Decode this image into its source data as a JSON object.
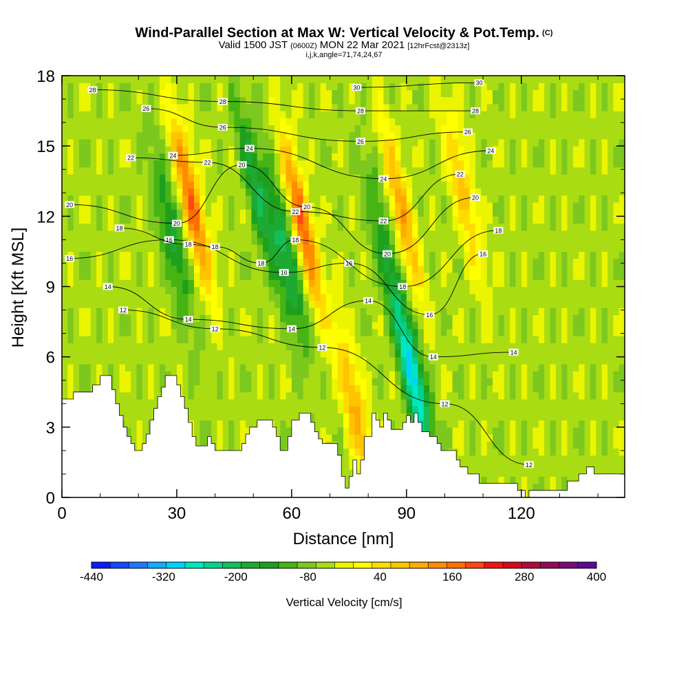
{
  "header": {
    "title": "Wind-Parallel Section at Max W: Vertical Velocity & Pot.Temp.",
    "copyright": "(C)",
    "valid_prefix": "Valid 1500 JST",
    "valid_utc": "(0600Z)",
    "valid_date": "MON 22 Mar 2021",
    "forecast": "[12hrFcst@2313z]",
    "indices": "i,j,k,angle=71,74,24,67"
  },
  "chart_data": {
    "type": "heatmap",
    "xlabel": "Distance [nm]",
    "ylabel": "Height [Kft MSL]",
    "xlim": [
      0,
      147
    ],
    "ylim": [
      0,
      18
    ],
    "x_ticks": [
      0,
      30,
      60,
      90,
      120
    ],
    "y_ticks": [
      0,
      3,
      6,
      9,
      12,
      15,
      18
    ],
    "colorbar": {
      "label": "Vertical Velocity [cm/s]",
      "min": -440,
      "max": 400,
      "step": 40,
      "tick_labels": [
        "-440",
        "-320",
        "-200",
        "-80",
        "40",
        "160",
        "280",
        "400"
      ],
      "colors": [
        "#0a1eff",
        "#1448ff",
        "#1e78ff",
        "#14aaff",
        "#00d2ff",
        "#00e6be",
        "#00d28c",
        "#14be5a",
        "#1eaa32",
        "#1ea01e",
        "#46b414",
        "#7dc81e",
        "#aadc14",
        "#ebf500",
        "#ffff00",
        "#ffdc00",
        "#ffc300",
        "#ffaa00",
        "#ff8c00",
        "#ff6e00",
        "#ff4614",
        "#f01414",
        "#d20a1e",
        "#b40a3c",
        "#960a5a",
        "#780a78",
        "#5a0a96"
      ]
    },
    "updrafts": [
      {
        "x": 33,
        "z_peak": 12.5,
        "w_max": 280
      },
      {
        "x": 62,
        "z_peak": 11.5,
        "w_max": 280
      },
      {
        "x": 88,
        "z_peak": 12.0,
        "w_max": 200
      },
      {
        "x": 104,
        "z_peak": 13.0,
        "w_max": 160
      },
      {
        "x": 76,
        "z_peak": 3.5,
        "w_max": 200
      }
    ],
    "downdrafts": [
      {
        "x": 91,
        "z_peak": 5.0,
        "w_min": -320
      },
      {
        "x": 28,
        "z_peak": 11.0,
        "w_min": -160
      },
      {
        "x": 58,
        "z_peak": 10.0,
        "w_min": -200
      },
      {
        "x": 50,
        "z_peak": 13.0,
        "w_min": -160
      },
      {
        "x": 83,
        "z_peak": 11.0,
        "w_min": -120
      }
    ],
    "terrain": [
      [
        0,
        4.2
      ],
      [
        3,
        4.2
      ],
      [
        3,
        4.5
      ],
      [
        8,
        4.5
      ],
      [
        8,
        4.8
      ],
      [
        10,
        4.8
      ],
      [
        10,
        5.2
      ],
      [
        13,
        5.2
      ],
      [
        13,
        4.6
      ],
      [
        14,
        4.6
      ],
      [
        14,
        4.0
      ],
      [
        15,
        4.0
      ],
      [
        15,
        3.5
      ],
      [
        16,
        3.5
      ],
      [
        16,
        3.0
      ],
      [
        17,
        3.0
      ],
      [
        17,
        2.6
      ],
      [
        18,
        2.6
      ],
      [
        18,
        2.3
      ],
      [
        19,
        2.3
      ],
      [
        19,
        2.0
      ],
      [
        21,
        2.0
      ],
      [
        21,
        2.3
      ],
      [
        22,
        2.3
      ],
      [
        22,
        2.7
      ],
      [
        23,
        2.7
      ],
      [
        23,
        3.3
      ],
      [
        24,
        3.3
      ],
      [
        24,
        3.8
      ],
      [
        25,
        3.8
      ],
      [
        25,
        4.3
      ],
      [
        26,
        4.3
      ],
      [
        26,
        4.7
      ],
      [
        27,
        4.7
      ],
      [
        27,
        5.2
      ],
      [
        30,
        5.2
      ],
      [
        30,
        4.8
      ],
      [
        31,
        4.8
      ],
      [
        31,
        4.3
      ],
      [
        32,
        4.3
      ],
      [
        32,
        3.8
      ],
      [
        33,
        3.8
      ],
      [
        33,
        3.2
      ],
      [
        34,
        3.2
      ],
      [
        34,
        2.6
      ],
      [
        35,
        2.6
      ],
      [
        35,
        2.2
      ],
      [
        38,
        2.2
      ],
      [
        38,
        2.6
      ],
      [
        39,
        2.6
      ],
      [
        39,
        2.3
      ],
      [
        40,
        2.3
      ],
      [
        40,
        2.0
      ],
      [
        47,
        2.0
      ],
      [
        47,
        2.3
      ],
      [
        48,
        2.3
      ],
      [
        48,
        2.7
      ],
      [
        49,
        2.7
      ],
      [
        49,
        3.0
      ],
      [
        51,
        3.0
      ],
      [
        51,
        3.3
      ],
      [
        55,
        3.3
      ],
      [
        55,
        3.0
      ],
      [
        56,
        3.0
      ],
      [
        56,
        2.6
      ],
      [
        57,
        2.6
      ],
      [
        57,
        2.0
      ],
      [
        59,
        2.0
      ],
      [
        59,
        2.6
      ],
      [
        60,
        2.6
      ],
      [
        60,
        3.3
      ],
      [
        62,
        3.3
      ],
      [
        62,
        3.6
      ],
      [
        65,
        3.6
      ],
      [
        65,
        3.2
      ],
      [
        66,
        3.2
      ],
      [
        66,
        2.8
      ],
      [
        67,
        2.8
      ],
      [
        67,
        2.5
      ],
      [
        68,
        2.5
      ],
      [
        68,
        2.3
      ],
      [
        72,
        2.3
      ],
      [
        72,
        1.8
      ],
      [
        73,
        1.8
      ],
      [
        73,
        0.9
      ],
      [
        74,
        0.9
      ],
      [
        74,
        0.4
      ],
      [
        75,
        0.4
      ],
      [
        75,
        0.9
      ],
      [
        76,
        0.9
      ],
      [
        76,
        1.6
      ],
      [
        77,
        1.6
      ],
      [
        77,
        1.0
      ],
      [
        78,
        1.0
      ],
      [
        78,
        1.6
      ],
      [
        79,
        1.6
      ],
      [
        79,
        2.6
      ],
      [
        81,
        2.6
      ],
      [
        81,
        3.6
      ],
      [
        82,
        3.6
      ],
      [
        82,
        3.3
      ],
      [
        83,
        3.3
      ],
      [
        83,
        3.0
      ],
      [
        84,
        3.0
      ],
      [
        84,
        3.6
      ],
      [
        85,
        3.6
      ],
      [
        85,
        3.3
      ],
      [
        86,
        3.3
      ],
      [
        86,
        2.9
      ],
      [
        89,
        2.9
      ],
      [
        89,
        3.2
      ],
      [
        90,
        3.2
      ],
      [
        90,
        3.5
      ],
      [
        91,
        3.5
      ],
      [
        91,
        3.2
      ],
      [
        92,
        3.2
      ],
      [
        92,
        3.6
      ],
      [
        93,
        3.6
      ],
      [
        93,
        3.2
      ],
      [
        94,
        3.2
      ],
      [
        94,
        2.8
      ],
      [
        96,
        2.8
      ],
      [
        96,
        2.6
      ],
      [
        98,
        2.6
      ],
      [
        98,
        2.3
      ],
      [
        99,
        2.3
      ],
      [
        99,
        2.0
      ],
      [
        103,
        2.0
      ],
      [
        103,
        1.6
      ],
      [
        104,
        1.6
      ],
      [
        104,
        1.3
      ],
      [
        106,
        1.3
      ],
      [
        106,
        1.0
      ],
      [
        109,
        1.0
      ],
      [
        109,
        0.6
      ],
      [
        119,
        0.6
      ],
      [
        119,
        0.3
      ],
      [
        121,
        0.3
      ],
      [
        121,
        0.0
      ],
      [
        122,
        0.0
      ],
      [
        122,
        0.3
      ],
      [
        132,
        0.3
      ],
      [
        132,
        0.7
      ],
      [
        135,
        0.7
      ],
      [
        135,
        1.0
      ],
      [
        137,
        1.0
      ],
      [
        137,
        1.3
      ],
      [
        139,
        1.3
      ],
      [
        139,
        1.0
      ],
      [
        147,
        1.0
      ]
    ],
    "theta_contours": [
      {
        "label": "12",
        "levels": 1,
        "samples": [
          [
            16,
            8
          ],
          [
            40,
            7.2
          ],
          [
            68,
            6.4
          ],
          [
            100,
            4
          ],
          [
            122,
            1.4
          ]
        ]
      },
      {
        "label": "14",
        "levels": 1,
        "samples": [
          [
            12,
            9
          ],
          [
            33,
            7.6
          ],
          [
            60,
            7.2
          ],
          [
            80,
            8.4
          ],
          [
            97,
            6
          ],
          [
            118,
            6.2
          ]
        ]
      },
      {
        "label": "16",
        "levels": 1,
        "samples": [
          [
            2,
            10.2
          ],
          [
            28,
            11
          ],
          [
            58,
            9.6
          ],
          [
            75,
            10
          ],
          [
            96,
            7.8
          ],
          [
            110,
            10.4
          ]
        ]
      },
      {
        "label": "18",
        "levels": 1,
        "samples": [
          [
            15,
            11.5
          ],
          [
            33,
            10.8
          ],
          [
            40,
            10.7
          ],
          [
            52,
            10
          ],
          [
            61,
            11
          ],
          [
            89,
            9
          ],
          [
            114,
            11.4
          ]
        ]
      },
      {
        "label": "20",
        "levels": 1,
        "samples": [
          [
            2,
            12.5
          ],
          [
            30,
            11.7
          ],
          [
            47,
            14.2
          ],
          [
            64,
            12.4
          ],
          [
            85,
            10.4
          ],
          [
            108,
            12.8
          ]
        ]
      },
      {
        "label": "22",
        "levels": 1,
        "samples": [
          [
            18,
            14.5
          ],
          [
            38,
            14.3
          ],
          [
            61,
            12.2
          ],
          [
            84,
            11.8
          ],
          [
            104,
            13.8
          ]
        ]
      },
      {
        "label": "24",
        "levels": 1,
        "samples": [
          [
            29,
            14.6
          ],
          [
            49,
            14.9
          ],
          [
            84,
            13.6
          ],
          [
            112,
            14.8
          ]
        ]
      },
      {
        "label": "26",
        "levels": 1,
        "samples": [
          [
            22,
            16.6
          ],
          [
            42,
            15.8
          ],
          [
            78,
            15.2
          ],
          [
            106,
            15.6
          ]
        ]
      },
      {
        "label": "28",
        "levels": 1,
        "samples": [
          [
            8,
            17.4
          ],
          [
            42,
            16.9
          ],
          [
            78,
            16.5
          ],
          [
            108,
            16.5
          ]
        ]
      },
      {
        "label": "30",
        "levels": 1,
        "samples": [
          [
            77,
            17.5
          ],
          [
            109,
            17.7
          ]
        ]
      }
    ]
  }
}
